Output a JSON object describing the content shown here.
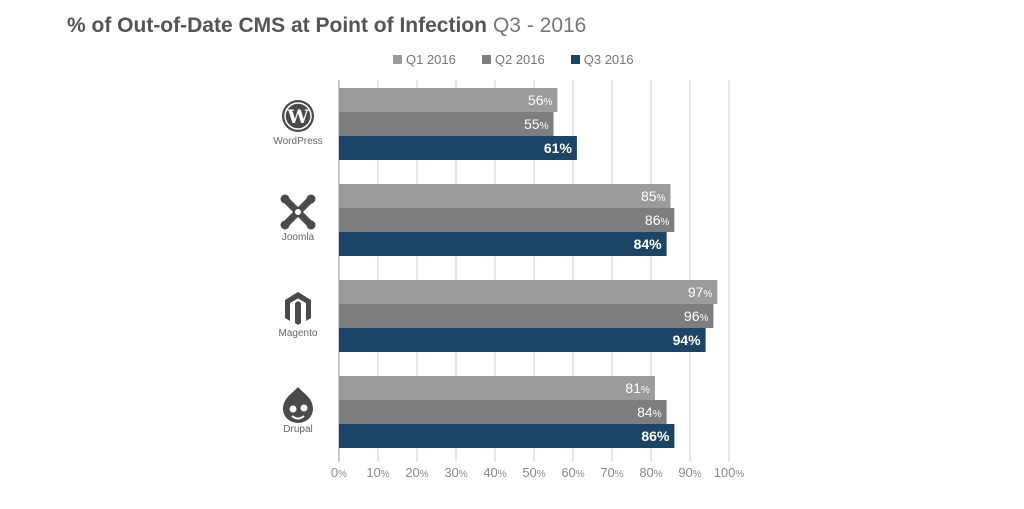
{
  "chart_data": {
    "type": "bar",
    "orientation": "horizontal",
    "title": "% of Out-of-Date CMS at Point of Infection",
    "subtitle": "Q3 - 2016",
    "categories": [
      "WordPress",
      "Joomla",
      "Magento",
      "Drupal"
    ],
    "series": [
      {
        "name": "Q1 2016",
        "color": "#9b9b9b",
        "values": [
          56,
          85,
          97,
          81
        ]
      },
      {
        "name": "Q2 2016",
        "color": "#7e7e7e",
        "values": [
          55,
          86,
          96,
          84
        ]
      },
      {
        "name": "Q3 2016",
        "color": "#1b4566",
        "values": [
          61,
          84,
          94,
          86
        ]
      }
    ],
    "x_ticks": [
      "0%",
      "10%",
      "20%",
      "30%",
      "40%",
      "50%",
      "60%",
      "70%",
      "80%",
      "90%",
      "100%"
    ],
    "xlim": [
      0,
      100
    ],
    "legend_position": "top",
    "grid": true
  }
}
